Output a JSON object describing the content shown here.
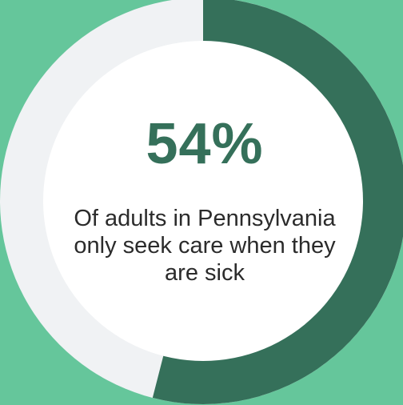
{
  "chart_data": {
    "type": "pie",
    "variant": "donut",
    "value_percent": 54,
    "remainder_percent": 46,
    "center_value_label": "54%",
    "caption": "Of adults in Pennsylvania only seek care when they are sick",
    "colors": {
      "background": "#65c69b",
      "filled_segment": "#35705a",
      "remainder_segment": "#f0f2f4",
      "inner_disc": "#ffffff",
      "value_text": "#35705a"
    }
  }
}
